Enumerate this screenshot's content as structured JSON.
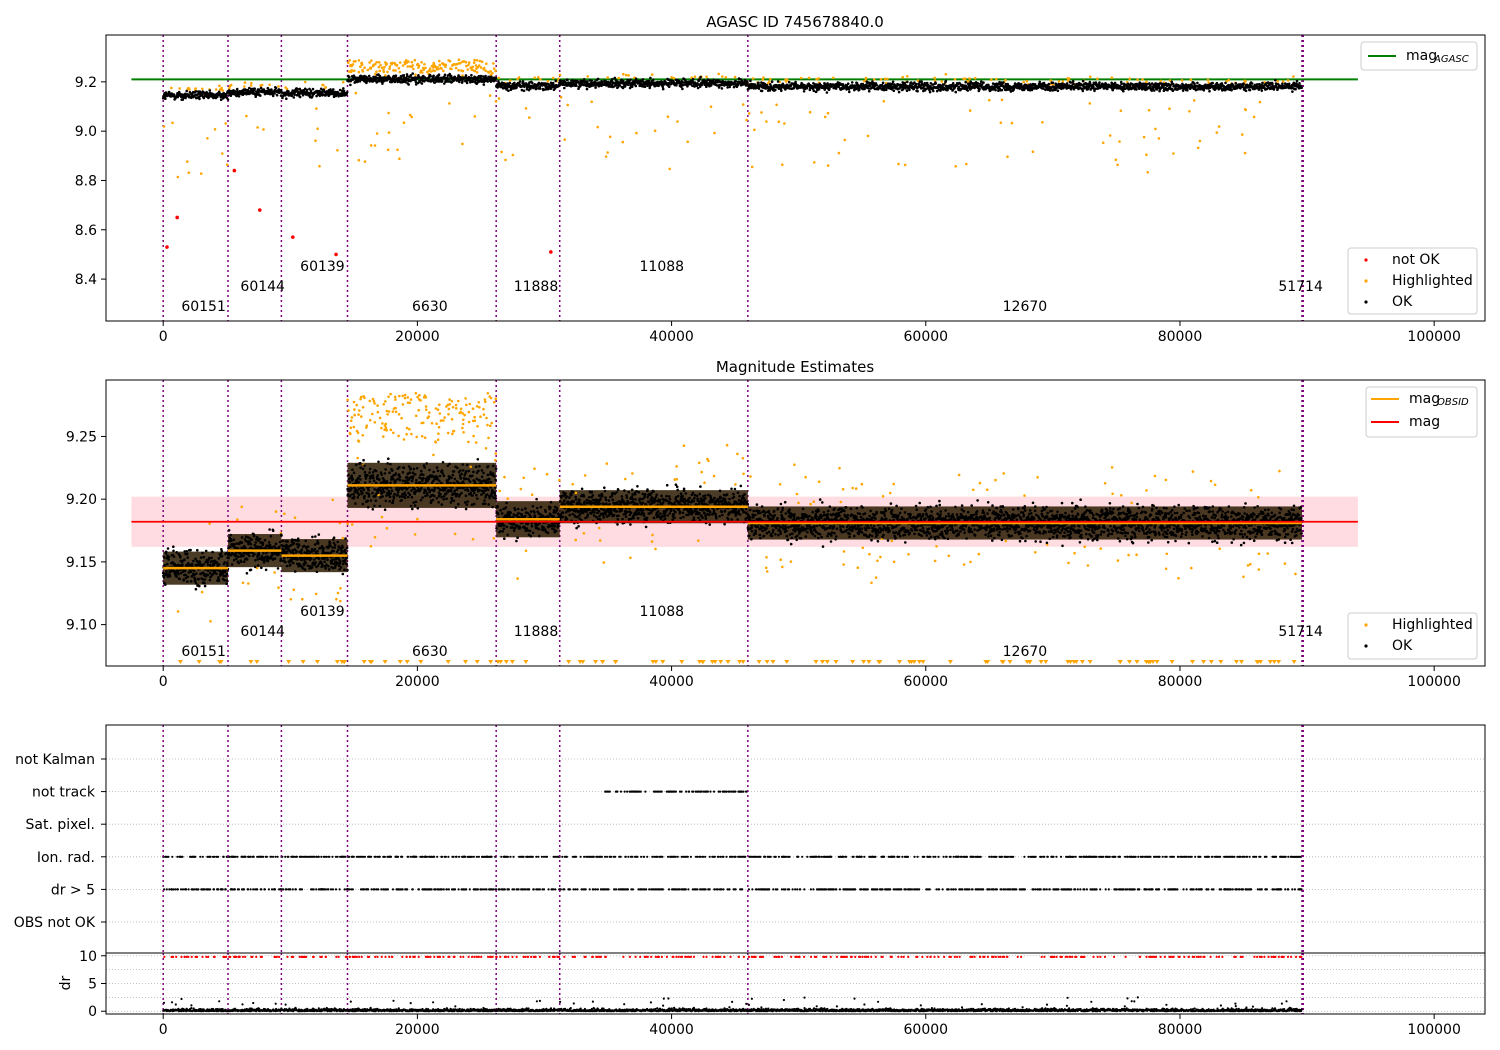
{
  "figure": {
    "title": "AGASC ID 745678840.0"
  },
  "colors": {
    "ok": "#000000",
    "highlighted": "#ffa500",
    "not_ok": "#ff0000",
    "agasc_line": "#008000",
    "mag_line": "#ff0000",
    "obsid_line": "#ffa500",
    "band": "#ffc0c8",
    "obs_boundary": "#800080",
    "grid": "#b0b0b0"
  },
  "x_ticks": [
    "0",
    "20000",
    "40000",
    "60000",
    "80000",
    "100000"
  ],
  "obs_boundaries": [
    0,
    5100,
    9300,
    14500,
    26200,
    31200,
    46000,
    89600,
    89700
  ],
  "observations": [
    {
      "obsid": "60151",
      "start": 0,
      "end": 5100,
      "mag_obsid": 9.145
    },
    {
      "obsid": "60144",
      "start": 5100,
      "end": 9300,
      "mag_obsid": 9.159
    },
    {
      "obsid": "60139",
      "start": 9300,
      "end": 14500,
      "mag_obsid": 9.155
    },
    {
      "obsid": "6630",
      "start": 14500,
      "end": 26200,
      "mag_obsid": 9.211
    },
    {
      "obsid": "11888",
      "start": 26200,
      "end": 31200,
      "mag_obsid": 9.184
    },
    {
      "obsid": "11088",
      "start": 31200,
      "end": 46000,
      "mag_obsid": 9.194
    },
    {
      "obsid": "12670",
      "start": 46000,
      "end": 89600,
      "mag_obsid": 9.181
    },
    {
      "obsid": "51714",
      "start": 89600,
      "end": 89700,
      "mag_obsid": 9.21
    }
  ],
  "chart_data": [
    {
      "type": "scatter",
      "title": "AGASC ID 745678840.0",
      "xlabel": "",
      "ylabel": "",
      "xlim": [
        -4500,
        104000
      ],
      "ylim": [
        8.23,
        9.39
      ],
      "y_ticks": [
        "8.4",
        "8.6",
        "8.8",
        "9.0",
        "9.2"
      ],
      "series": [
        {
          "name": "not OK",
          "color": "#ff0000"
        },
        {
          "name": "Highlighted",
          "color": "#ffa500"
        },
        {
          "name": "OK",
          "color": "#000000"
        }
      ],
      "lines": [
        {
          "name": "mag_AGASC",
          "label_main": "mag",
          "label_sub": "AGASC",
          "y": 9.21,
          "color": "#008000"
        }
      ],
      "not_ok_points": [
        [
          300,
          8.53
        ],
        [
          1100,
          8.65
        ],
        [
          5600,
          8.84
        ],
        [
          7600,
          8.68
        ],
        [
          10200,
          8.57
        ],
        [
          13600,
          8.5
        ],
        [
          30500,
          8.51
        ]
      ],
      "grid": false,
      "legend_positions": [
        "upper right",
        "lower right"
      ]
    },
    {
      "type": "scatter",
      "title": "Magnitude Estimates",
      "xlabel": "",
      "ylabel": "",
      "xlim": [
        -4500,
        104000
      ],
      "ylim": [
        9.067,
        9.295
      ],
      "y_ticks": [
        "9.10",
        "9.15",
        "9.20",
        "9.25"
      ],
      "series": [
        {
          "name": "Highlighted",
          "color": "#ffa500"
        },
        {
          "name": "OK",
          "color": "#000000"
        }
      ],
      "lines": [
        {
          "name": "mag_OBSID",
          "label_main": "mag",
          "label_sub": "OBSID",
          "color": "#ffa500"
        },
        {
          "name": "mag",
          "label_main": "mag",
          "y": 9.182,
          "band": [
            9.162,
            9.202
          ],
          "color": "#ff0000"
        }
      ],
      "grid": false,
      "legend_positions": [
        "upper right",
        "lower right"
      ]
    },
    {
      "type": "scatter",
      "title": "",
      "xlabel": "",
      "ylabel": "",
      "categories": [
        "not Kalman",
        "not track",
        "Sat. pixel.",
        "Ion. rad.",
        "dr > 5",
        "OBS not OK"
      ],
      "flag_ranges": {
        "not Kalman": [],
        "not track": [
          [
            34500,
            46000
          ]
        ],
        "Sat. pixel.": [],
        "Ion. rad.": [
          [
            0,
            89600
          ]
        ],
        "dr > 5": [
          [
            0,
            89600
          ]
        ],
        "OBS not OK": []
      },
      "grid": true
    },
    {
      "type": "scatter",
      "title": "",
      "xlabel": "",
      "ylabel": "dr",
      "xlim": [
        -4500,
        104000
      ],
      "ylim": [
        -0.5,
        10.5
      ],
      "y_ticks": [
        "0",
        "5",
        "10"
      ],
      "grid": true
    }
  ]
}
